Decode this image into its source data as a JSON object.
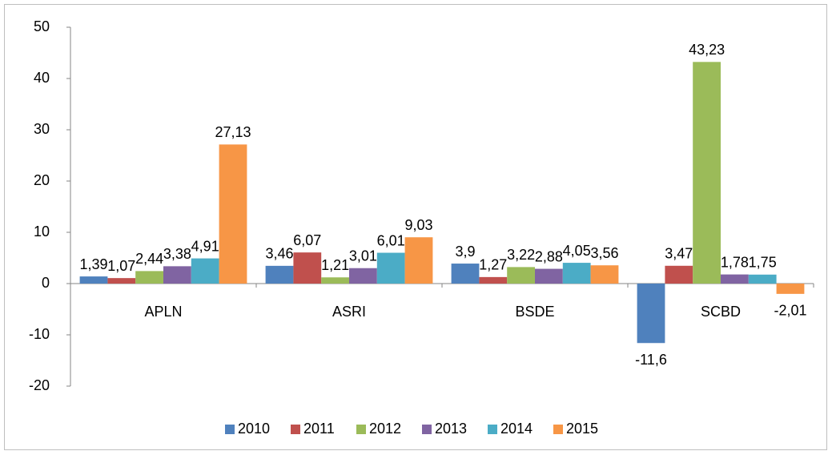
{
  "chart_data": {
    "type": "bar",
    "categories": [
      "APLN",
      "ASRI",
      "BSDE",
      "SCBD"
    ],
    "series": [
      {
        "name": "2010",
        "color": "#4f81bd",
        "values": [
          1.39,
          3.46,
          3.9,
          -11.6
        ],
        "value_labels": [
          "1,39",
          "3,46",
          "3,9",
          "-11,6"
        ]
      },
      {
        "name": "2011",
        "color": "#c0504d",
        "values": [
          1.07,
          6.07,
          1.27,
          3.47
        ],
        "value_labels": [
          "1,07",
          "6,07",
          "1,27",
          "3,47"
        ]
      },
      {
        "name": "2012",
        "color": "#9bbb59",
        "values": [
          2.44,
          1.21,
          3.22,
          43.23
        ],
        "value_labels": [
          "2,44",
          "1,21",
          "3,22",
          "43,23"
        ]
      },
      {
        "name": "2013",
        "color": "#8064a2",
        "values": [
          3.38,
          3.01,
          2.88,
          1.78
        ],
        "value_labels": [
          "3,38",
          "3,01",
          "2,88",
          "1,78"
        ]
      },
      {
        "name": "2014",
        "color": "#4bacc6",
        "values": [
          4.91,
          6.01,
          4.05,
          1.75
        ],
        "value_labels": [
          "4,91",
          "6,01",
          "4,05",
          "1,75"
        ]
      },
      {
        "name": "2015",
        "color": "#f79646",
        "values": [
          27.13,
          9.03,
          3.56,
          -2.01
        ],
        "value_labels": [
          "27,13",
          "9,03",
          "3,56",
          "-2,01"
        ]
      }
    ],
    "ylim": [
      -20,
      50
    ],
    "yticks": [
      -20,
      -10,
      0,
      10,
      20,
      30,
      40,
      50
    ],
    "legend": "bottom"
  }
}
